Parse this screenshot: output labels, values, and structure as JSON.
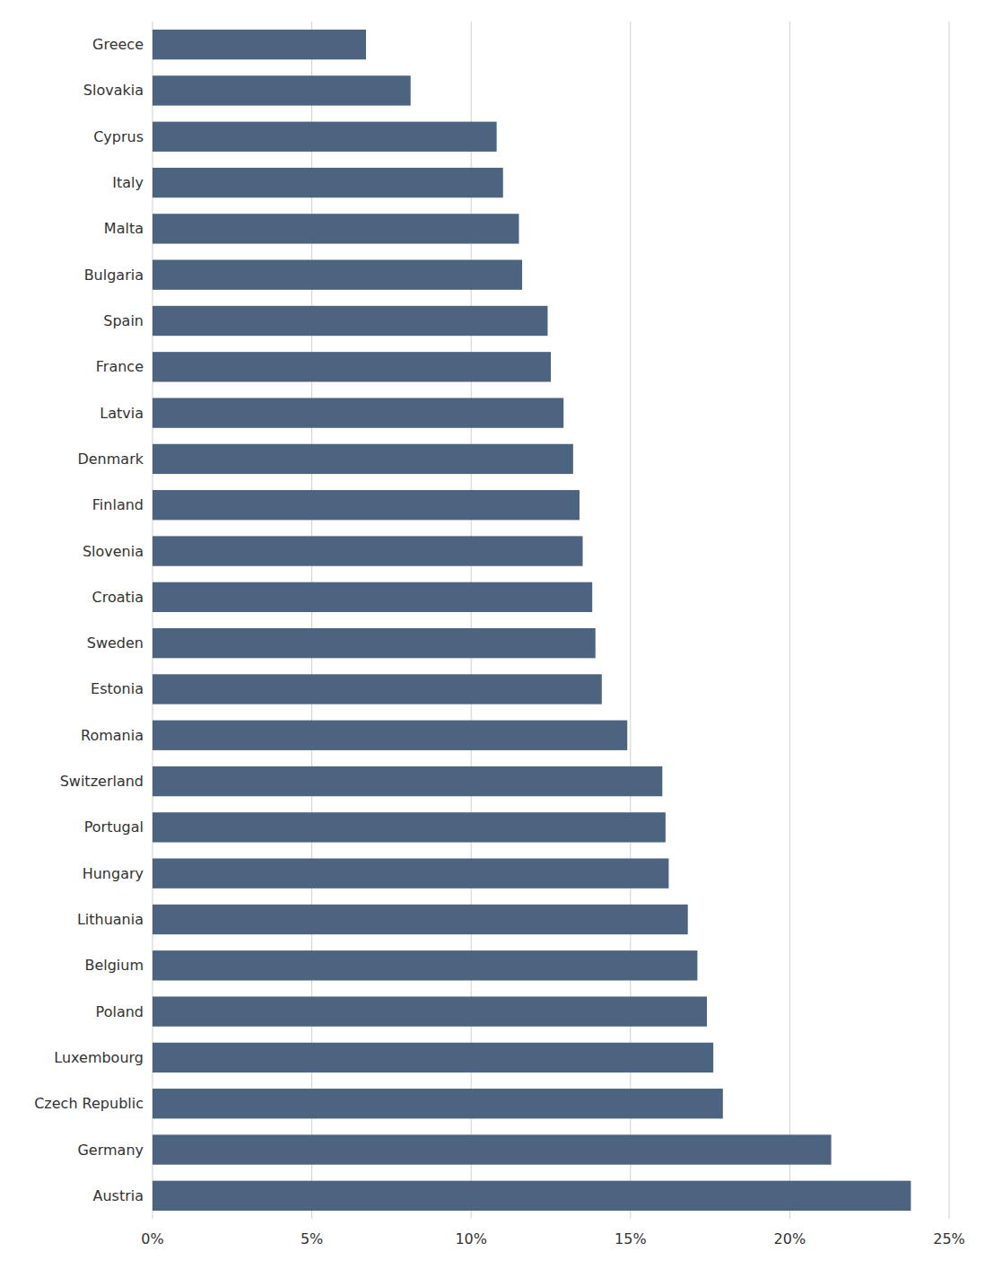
{
  "chart_data": {
    "type": "bar",
    "orientation": "horizontal",
    "categories": [
      "Greece",
      "Slovakia",
      "Cyprus",
      "Italy",
      "Malta",
      "Bulgaria",
      "Spain",
      "France",
      "Latvia",
      "Denmark",
      "Finland",
      "Slovenia",
      "Croatia",
      "Sweden",
      "Estonia",
      "Romania",
      "Switzerland",
      "Portugal",
      "Hungary",
      "Lithuania",
      "Belgium",
      "Poland",
      "Luxembourg",
      "Czech Republic",
      "Germany",
      "Austria"
    ],
    "values": [
      6.7,
      8.1,
      10.8,
      11.0,
      11.5,
      11.6,
      12.4,
      12.5,
      12.9,
      13.2,
      13.4,
      13.5,
      13.8,
      13.9,
      14.1,
      14.9,
      16.0,
      16.1,
      16.2,
      16.8,
      17.1,
      17.4,
      17.6,
      17.9,
      21.3,
      23.8
    ],
    "color": "#4d6480",
    "xlim": [
      0,
      25
    ],
    "xticks": [
      {
        "value": 0,
        "label": "0%"
      },
      {
        "value": 5,
        "label": "5%"
      },
      {
        "value": 10,
        "label": "10%"
      },
      {
        "value": 15,
        "label": "15%"
      },
      {
        "value": 20,
        "label": "20%"
      },
      {
        "value": 25,
        "label": "25%"
      }
    ],
    "grid": true
  }
}
